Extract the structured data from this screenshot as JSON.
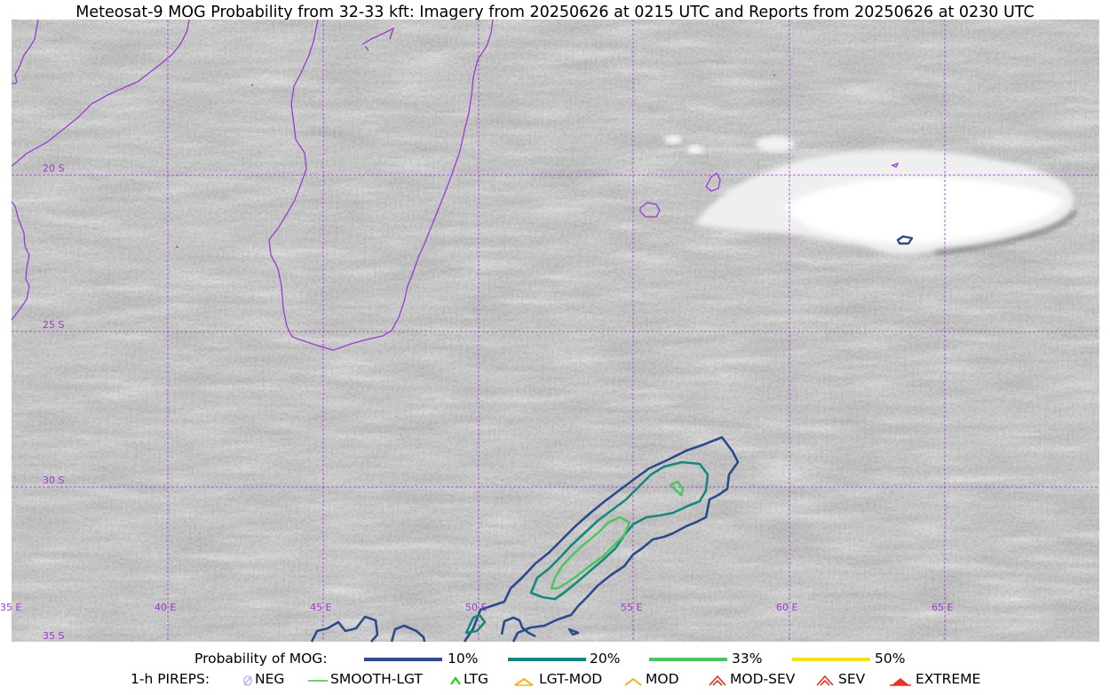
{
  "title": "Meteosat-9 MOG Probability from 32-33 kft: Imagery from 20250626 at 0215 UTC and Reports from 20250626 at 0230 UTC",
  "grid": {
    "lat_labels": [
      "20 S",
      "25 S",
      "30 S",
      "35 S"
    ],
    "lon_labels": [
      "35 E",
      "40 E",
      "45 E",
      "50 E",
      "55 E",
      "60 E",
      "65 E"
    ]
  },
  "colors": {
    "coastline": "#9b3ad1",
    "gridline": "#9b3ad1",
    "prob_10": "#2c4a8c",
    "prob_20": "#17887e",
    "prob_33": "#4cc45e",
    "prob_50": "#f7e01e",
    "smooth_lgt": "#3ec43e",
    "ltg": "#22cc22",
    "lgt_mod": "#f2b21c",
    "mod": "#f2b21c",
    "mod_sev": "#e8322a",
    "sev": "#e8322a",
    "extreme": "#e8322a",
    "neg": "#b8b8f0"
  },
  "legend": {
    "probability": {
      "label": "Probability of MOG:",
      "items": [
        "10%",
        "20%",
        "33%",
        "50%"
      ]
    },
    "pireps": {
      "label": "1-h PIREPS:",
      "items": [
        "NEG",
        "SMOOTH-LGT",
        "LTG",
        "LGT-MOD",
        "MOD",
        "MOD-SEV",
        "SEV",
        "EXTREME"
      ]
    }
  }
}
